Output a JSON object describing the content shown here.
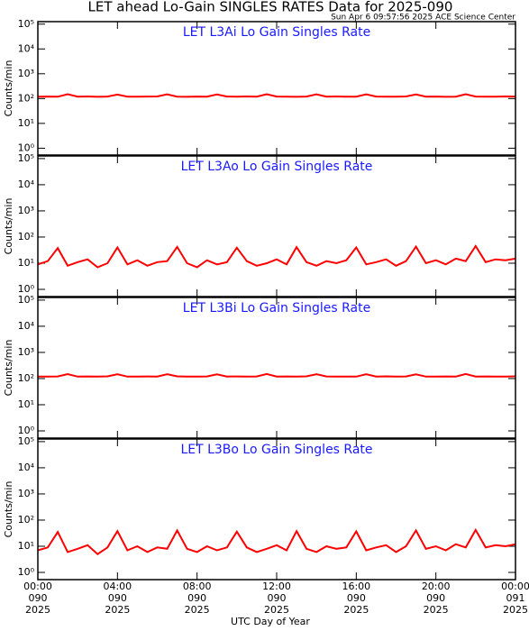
{
  "title": "LET ahead Lo-Gain SINGLES RATES Data for 2025-090",
  "timestamp": "Sun Apr  6 09:57:56 2025 ACE Science Center",
  "xlabel": "UTC Day of Year",
  "chart_data": [
    {
      "type": "line",
      "title": "LET L3Ai Lo Gain Singles Rate",
      "ylabel": "Counts/min",
      "color": "#ff0000",
      "log_y": true,
      "xlim": [
        0,
        24
      ],
      "xticks": [
        {
          "value": 0,
          "label": "00:00"
        },
        {
          "value": 4,
          "label": "04:00"
        },
        {
          "value": 8,
          "label": "08:00"
        },
        {
          "value": 12,
          "label": "12:00"
        },
        {
          "value": 16,
          "label": "16:00"
        },
        {
          "value": 20,
          "label": "20:00"
        },
        {
          "value": 24,
          "label": "00:00"
        }
      ],
      "ylim": [
        0.53,
        126000
      ],
      "yticks": [
        {
          "value": 1,
          "label": "10⁰"
        },
        {
          "value": 10,
          "label": "10¹"
        },
        {
          "value": 100,
          "label": "10²"
        },
        {
          "value": 1000,
          "label": "10³"
        },
        {
          "value": 10000,
          "label": "10⁴"
        },
        {
          "value": 100000,
          "label": "10⁵"
        }
      ],
      "x": [
        0,
        0.5,
        1,
        1.5,
        2,
        2.5,
        3,
        3.5,
        4,
        4.5,
        5,
        5.5,
        6,
        6.5,
        7,
        7.5,
        8,
        8.5,
        9,
        9.5,
        10,
        10.5,
        11,
        11.5,
        12,
        12.5,
        13,
        13.5,
        14,
        14.5,
        15,
        15.5,
        16,
        16.5,
        17,
        17.5,
        18,
        18.5,
        19,
        19.5,
        20,
        20.5,
        21,
        21.5,
        22,
        22.5,
        23,
        23.5,
        24
      ],
      "values": [
        120,
        121,
        119,
        150,
        120,
        122,
        118,
        121,
        145,
        120,
        119,
        121,
        122,
        148,
        120,
        118,
        121,
        120,
        146,
        121,
        119,
        122,
        120,
        150,
        121,
        120,
        118,
        121,
        147,
        120,
        122,
        119,
        120,
        148,
        121,
        120,
        119,
        122,
        146,
        120,
        121,
        118,
        120,
        150,
        121,
        119,
        120,
        122,
        121
      ]
    },
    {
      "type": "line",
      "title": "LET L3Ao Lo Gain Singles Rate",
      "ylabel": "Counts/min",
      "color": "#ff0000",
      "log_y": true,
      "xlim": [
        0,
        24
      ],
      "xticks": [
        {
          "value": 0,
          "label": "00:00"
        },
        {
          "value": 4,
          "label": "04:00"
        },
        {
          "value": 8,
          "label": "08:00"
        },
        {
          "value": 12,
          "label": "12:00"
        },
        {
          "value": 16,
          "label": "16:00"
        },
        {
          "value": 20,
          "label": "20:00"
        },
        {
          "value": 24,
          "label": "00:00"
        }
      ],
      "ylim": [
        0.53,
        126000
      ],
      "yticks": [
        {
          "value": 1,
          "label": "10⁰"
        },
        {
          "value": 10,
          "label": "10¹"
        },
        {
          "value": 100,
          "label": "10²"
        },
        {
          "value": 1000,
          "label": "10³"
        },
        {
          "value": 10000,
          "label": "10⁴"
        },
        {
          "value": 100000,
          "label": "10⁵"
        }
      ],
      "x": [
        0,
        0.5,
        1,
        1.5,
        2,
        2.5,
        3,
        3.5,
        4,
        4.5,
        5,
        5.5,
        6,
        6.5,
        7,
        7.5,
        8,
        8.5,
        9,
        9.5,
        10,
        10.5,
        11,
        11.5,
        12,
        12.5,
        13,
        13.5,
        14,
        14.5,
        15,
        15.5,
        16,
        16.5,
        17,
        17.5,
        18,
        18.5,
        19,
        19.5,
        20,
        20.5,
        21,
        21.5,
        22,
        22.5,
        23,
        23.5,
        24
      ],
      "values": [
        9,
        12,
        38,
        8,
        11,
        14,
        7,
        10,
        40,
        9,
        13,
        8,
        11,
        12,
        42,
        10,
        7,
        13,
        9,
        11,
        39,
        12,
        8,
        10,
        14,
        9,
        41,
        11,
        8,
        12,
        10,
        13,
        40,
        9,
        11,
        14,
        8,
        12,
        43,
        10,
        13,
        9,
        15,
        12,
        45,
        11,
        14,
        13,
        15
      ]
    },
    {
      "type": "line",
      "title": "LET L3Bi Lo Gain Singles Rate",
      "ylabel": "Counts/min",
      "color": "#ff0000",
      "log_y": true,
      "xlim": [
        0,
        24
      ],
      "xticks": [
        {
          "value": 0,
          "label": "00:00"
        },
        {
          "value": 4,
          "label": "04:00"
        },
        {
          "value": 8,
          "label": "08:00"
        },
        {
          "value": 12,
          "label": "12:00"
        },
        {
          "value": 16,
          "label": "16:00"
        },
        {
          "value": 20,
          "label": "20:00"
        },
        {
          "value": 24,
          "label": "00:00"
        }
      ],
      "ylim": [
        0.53,
        126000
      ],
      "yticks": [
        {
          "value": 1,
          "label": "10⁰"
        },
        {
          "value": 10,
          "label": "10¹"
        },
        {
          "value": 100,
          "label": "10²"
        },
        {
          "value": 1000,
          "label": "10³"
        },
        {
          "value": 10000,
          "label": "10⁴"
        },
        {
          "value": 100000,
          "label": "10⁵"
        }
      ],
      "x": [
        0,
        0.5,
        1,
        1.5,
        2,
        2.5,
        3,
        3.5,
        4,
        4.5,
        5,
        5.5,
        6,
        6.5,
        7,
        7.5,
        8,
        8.5,
        9,
        9.5,
        10,
        10.5,
        11,
        11.5,
        12,
        12.5,
        13,
        13.5,
        14,
        14.5,
        15,
        15.5,
        16,
        16.5,
        17,
        17.5,
        18,
        18.5,
        19,
        19.5,
        20,
        20.5,
        21,
        21.5,
        22,
        22.5,
        23,
        23.5,
        24
      ],
      "values": [
        119,
        120,
        121,
        148,
        119,
        121,
        120,
        122,
        146,
        119,
        120,
        121,
        120,
        147,
        122,
        119,
        120,
        121,
        145,
        120,
        121,
        119,
        121,
        149,
        120,
        121,
        119,
        122,
        146,
        121,
        120,
        120,
        119,
        147,
        120,
        122,
        120,
        121,
        145,
        119,
        120,
        121,
        119,
        149,
        120,
        121,
        119,
        120,
        122
      ]
    },
    {
      "type": "line",
      "title": "LET L3Bo Lo Gain Singles Rate",
      "ylabel": "Counts/min",
      "color": "#ff0000",
      "log_y": true,
      "xlim": [
        0,
        24
      ],
      "xticks": [
        {
          "value": 0,
          "label": "00:00"
        },
        {
          "value": 4,
          "label": "04:00"
        },
        {
          "value": 8,
          "label": "08:00"
        },
        {
          "value": 12,
          "label": "12:00"
        },
        {
          "value": 16,
          "label": "16:00"
        },
        {
          "value": 20,
          "label": "20:00"
        },
        {
          "value": 24,
          "label": "00:00"
        }
      ],
      "x_day_labels": [
        "090",
        "090",
        "090",
        "090",
        "090",
        "090",
        "091"
      ],
      "x_year_labels": [
        "2025",
        "2025",
        "2025",
        "2025",
        "2025",
        "2025",
        "2025"
      ],
      "ylim": [
        0.53,
        126000
      ],
      "yticks": [
        {
          "value": 1,
          "label": "10⁰"
        },
        {
          "value": 10,
          "label": "10¹"
        },
        {
          "value": 100,
          "label": "10²"
        },
        {
          "value": 1000,
          "label": "10³"
        },
        {
          "value": 10000,
          "label": "10⁴"
        },
        {
          "value": 100000,
          "label": "10⁵"
        }
      ],
      "x": [
        0,
        0.5,
        1,
        1.5,
        2,
        2.5,
        3,
        3.5,
        4,
        4.5,
        5,
        5.5,
        6,
        6.5,
        7,
        7.5,
        8,
        8.5,
        9,
        9.5,
        10,
        10.5,
        11,
        11.5,
        12,
        12.5,
        13,
        13.5,
        14,
        14.5,
        15,
        15.5,
        16,
        16.5,
        17,
        17.5,
        18,
        18.5,
        19,
        19.5,
        20,
        20.5,
        21,
        21.5,
        22,
        22.5,
        23,
        23.5,
        24
      ],
      "values": [
        7,
        9,
        35,
        6,
        8,
        11,
        5,
        9,
        38,
        7,
        10,
        6,
        9,
        8,
        40,
        8,
        6,
        10,
        7,
        9,
        36,
        9,
        6,
        8,
        11,
        7,
        38,
        8,
        6,
        10,
        8,
        9,
        37,
        7,
        9,
        11,
        6,
        10,
        40,
        8,
        10,
        7,
        12,
        9,
        42,
        9,
        11,
        10,
        12
      ]
    }
  ]
}
